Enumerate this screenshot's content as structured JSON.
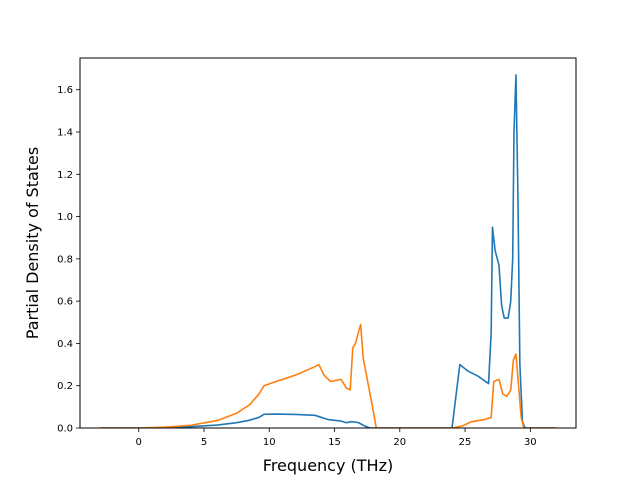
{
  "chart_data": {
    "type": "line",
    "xlabel": "Frequency (THz)",
    "ylabel": "Partial Density of States",
    "xlim": [
      -4.5,
      33.5
    ],
    "ylim": [
      0,
      1.75
    ],
    "xticks": [
      0,
      5,
      10,
      15,
      20,
      25,
      30
    ],
    "yticks": [
      0.0,
      0.2,
      0.4,
      0.6,
      0.8,
      1.0,
      1.2,
      1.4,
      1.6
    ],
    "ytick_labels": [
      "0.0",
      "0.2",
      "0.4",
      "0.6",
      "0.8",
      "1.0",
      "1.2",
      "1.4",
      "1.6"
    ],
    "grid": false,
    "series": [
      {
        "color": "#1f77b4",
        "points": [
          [
            -3.0,
            0.0
          ],
          [
            0.0,
            0.0
          ],
          [
            2.0,
            0.002
          ],
          [
            4.0,
            0.006
          ],
          [
            6.0,
            0.014
          ],
          [
            7.5,
            0.025
          ],
          [
            8.5,
            0.037
          ],
          [
            9.2,
            0.05
          ],
          [
            9.6,
            0.065
          ],
          [
            10.5,
            0.066
          ],
          [
            12.0,
            0.064
          ],
          [
            13.5,
            0.06
          ],
          [
            14.0,
            0.05
          ],
          [
            14.5,
            0.04
          ],
          [
            15.5,
            0.033
          ],
          [
            15.9,
            0.025
          ],
          [
            16.3,
            0.03
          ],
          [
            16.8,
            0.026
          ],
          [
            17.3,
            0.01
          ],
          [
            17.7,
            0.0
          ],
          [
            24.0,
            0.0
          ],
          [
            24.6,
            0.3
          ],
          [
            25.2,
            0.27
          ],
          [
            26.0,
            0.245
          ],
          [
            26.8,
            0.21
          ],
          [
            27.0,
            0.45
          ],
          [
            27.1,
            0.95
          ],
          [
            27.3,
            0.84
          ],
          [
            27.6,
            0.77
          ],
          [
            27.8,
            0.58
          ],
          [
            28.0,
            0.52
          ],
          [
            28.3,
            0.52
          ],
          [
            28.5,
            0.6
          ],
          [
            28.65,
            0.8
          ],
          [
            28.75,
            1.4
          ],
          [
            28.9,
            1.67
          ],
          [
            29.05,
            1.1
          ],
          [
            29.2,
            0.3
          ],
          [
            29.4,
            0.03
          ],
          [
            29.6,
            0.0
          ],
          [
            32.0,
            0.0
          ]
        ]
      },
      {
        "color": "#ff7f0e",
        "points": [
          [
            -3.0,
            0.0
          ],
          [
            0.0,
            0.0
          ],
          [
            2.0,
            0.004
          ],
          [
            4.0,
            0.013
          ],
          [
            6.0,
            0.035
          ],
          [
            7.5,
            0.07
          ],
          [
            8.5,
            0.11
          ],
          [
            9.2,
            0.16
          ],
          [
            9.6,
            0.2
          ],
          [
            10.3,
            0.215
          ],
          [
            12.0,
            0.25
          ],
          [
            13.5,
            0.29
          ],
          [
            13.8,
            0.3
          ],
          [
            14.2,
            0.25
          ],
          [
            14.7,
            0.22
          ],
          [
            15.5,
            0.23
          ],
          [
            15.9,
            0.19
          ],
          [
            16.2,
            0.18
          ],
          [
            16.4,
            0.38
          ],
          [
            16.6,
            0.4
          ],
          [
            17.0,
            0.49
          ],
          [
            17.2,
            0.33
          ],
          [
            17.6,
            0.2
          ],
          [
            18.0,
            0.07
          ],
          [
            18.2,
            0.0
          ],
          [
            24.0,
            0.0
          ],
          [
            24.8,
            0.01
          ],
          [
            25.5,
            0.03
          ],
          [
            26.5,
            0.04
          ],
          [
            27.0,
            0.05
          ],
          [
            27.2,
            0.22
          ],
          [
            27.6,
            0.23
          ],
          [
            27.9,
            0.16
          ],
          [
            28.2,
            0.15
          ],
          [
            28.5,
            0.18
          ],
          [
            28.7,
            0.32
          ],
          [
            28.9,
            0.35
          ],
          [
            29.1,
            0.2
          ],
          [
            29.3,
            0.05
          ],
          [
            29.5,
            0.0
          ],
          [
            32.0,
            0.0
          ]
        ]
      }
    ]
  }
}
